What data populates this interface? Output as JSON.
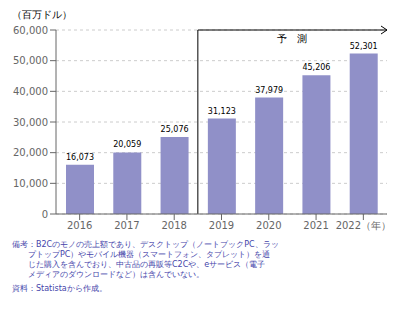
{
  "chart_data": {
    "type": "bar",
    "ylabel": "（百万ドル）",
    "categories": [
      "2016",
      "2017",
      "2018",
      "2019",
      "2020",
      "2021",
      "2022（年）"
    ],
    "values": [
      16073,
      20059,
      25076,
      31123,
      37979,
      45206,
      52301
    ],
    "value_labels": [
      "16,073",
      "20,059",
      "25,076",
      "31,123",
      "37,979",
      "45,206",
      "52,301"
    ],
    "data_labels": true,
    "color": "#9090c8",
    "ylim": [
      0,
      60000
    ],
    "yticks": [
      0,
      {
        "value": 10000,
        "label": "10,000"
      },
      {
        "value": 20000,
        "label": "20,000"
      },
      {
        "value": 30000,
        "label": "30,000"
      },
      {
        "value": 40000,
        "label": "40,000"
      },
      {
        "value": 50000,
        "label": "50,000"
      },
      {
        "value": 60000,
        "label": "60,000"
      }
    ],
    "grid": true,
    "annotations": [
      {
        "text": "予　測",
        "from": "2019"
      }
    ],
    "note": "備考：B2Cのモノの売上額であり、デスクトップ（ノートブックPC、ラッ\n　　プトップPC）やモバイル機器（スマートフォン、タブレット）を通\n　　じた購入を含んでおり、中古品の再販等C2Cや、eサービス（電子\n　　メディアのダウンロードなど）は含んでいない。",
    "source": "資料：Statistaから作成。"
  }
}
